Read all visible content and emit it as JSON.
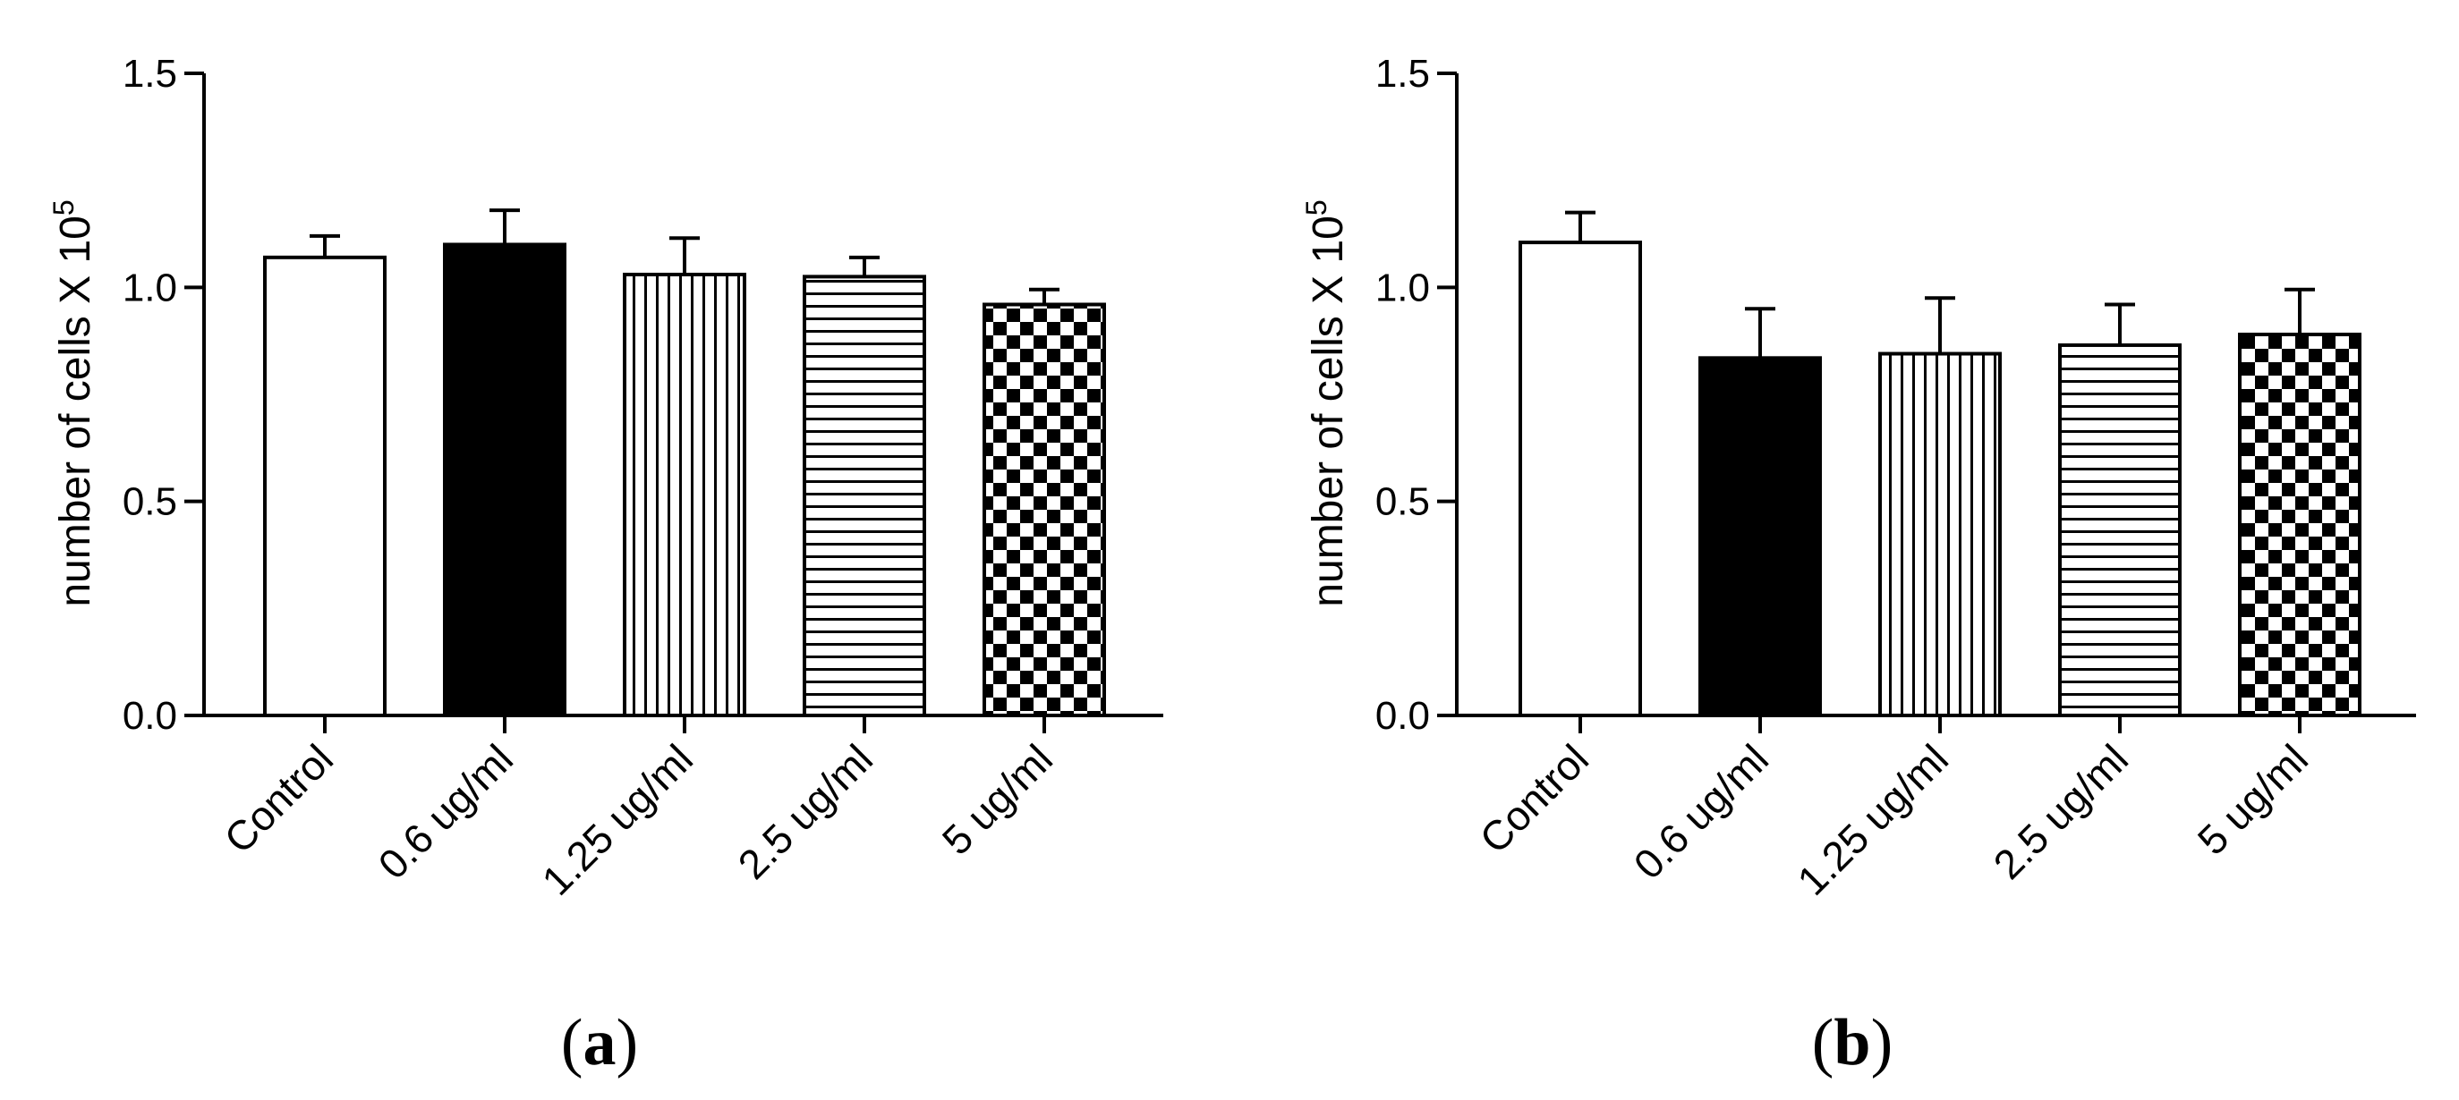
{
  "chart_data": [
    {
      "type": "bar",
      "panel_label": "(a)",
      "panel_letter": "a",
      "ylabel": "number of cells X 10",
      "ylabel_exponent": "5",
      "ylim": [
        0,
        1.5
      ],
      "yticks": [
        "0.0",
        "0.5",
        "1.0",
        "1.5"
      ],
      "categories": [
        "Control",
        "0.6 ug/ml",
        "1.25 ug/ml",
        "2.5 ug/ml",
        "5 ug/ml"
      ],
      "values": [
        1.07,
        1.1,
        1.03,
        1.025,
        0.96
      ],
      "errors": [
        0.05,
        0.08,
        0.085,
        0.045,
        0.035
      ],
      "patterns": [
        "white",
        "black",
        "vertical-lines",
        "horizontal-lines",
        "checker"
      ]
    },
    {
      "type": "bar",
      "panel_label": "(b)",
      "panel_letter": "b",
      "ylabel": "number of cells X 10",
      "ylabel_exponent": "5",
      "ylim": [
        0,
        1.5
      ],
      "yticks": [
        "0.0",
        "0.5",
        "1.0",
        "1.5"
      ],
      "categories": [
        "Control",
        "0.6 ug/ml",
        "1.25 ug/ml",
        "2.5 ug/ml",
        "5 ug/ml"
      ],
      "values": [
        1.105,
        0.835,
        0.845,
        0.865,
        0.89
      ],
      "errors": [
        0.07,
        0.115,
        0.13,
        0.095,
        0.105
      ],
      "patterns": [
        "white",
        "black",
        "vertical-lines",
        "horizontal-lines",
        "checker"
      ]
    }
  ]
}
